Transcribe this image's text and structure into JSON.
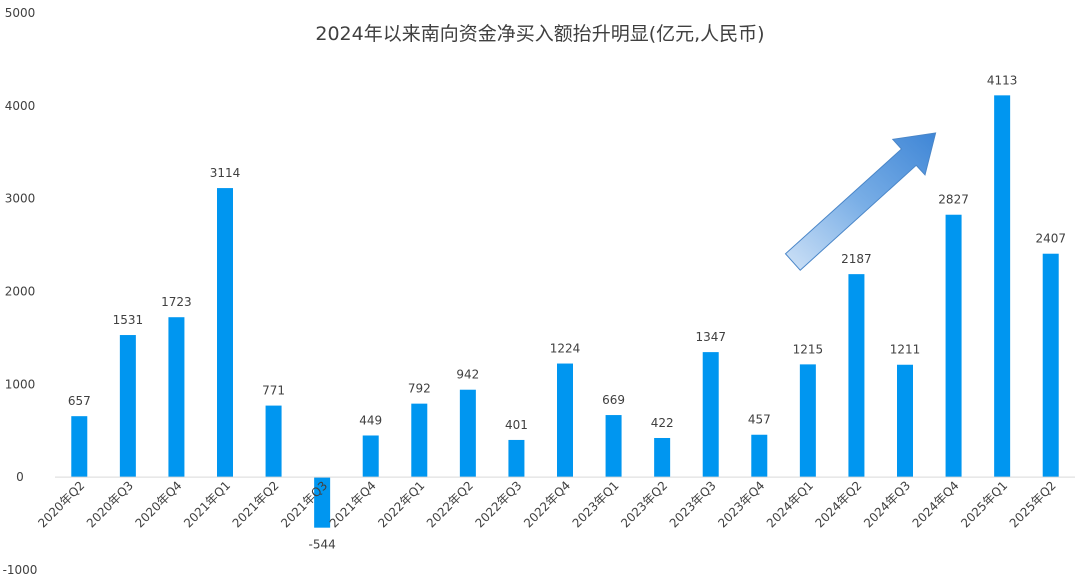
{
  "chart_data": {
    "type": "bar",
    "title": "2024年以来南向资金净买入额抬升明显(亿元,人民币)",
    "xlabel": "",
    "ylabel": "",
    "ylim": [
      -1000,
      5000
    ],
    "yticks": [
      -1000,
      0,
      1000,
      2000,
      3000,
      4000,
      5000
    ],
    "grid": false,
    "legend": "none",
    "categories": [
      "2020年Q2",
      "2020年Q3",
      "2020年Q4",
      "2021年Q1",
      "2021年Q2",
      "2021年Q3",
      "2021年Q4",
      "2022年Q1",
      "2022年Q2",
      "2022年Q3",
      "2022年Q4",
      "2023年Q1",
      "2023年Q2",
      "2023年Q3",
      "2023年Q4",
      "2024年Q1",
      "2024年Q2",
      "2024年Q3",
      "2024年Q4",
      "2025年Q1",
      "2025年Q2"
    ],
    "values": [
      657,
      1531,
      1723,
      3114,
      771,
      -544,
      449,
      792,
      942,
      401,
      1224,
      669,
      422,
      1347,
      457,
      1215,
      2187,
      1211,
      2827,
      4113,
      2407
    ],
    "colors": {
      "bar": "#0096f0",
      "arrow_fill": "#4a90e2",
      "text": "#404040"
    },
    "annotation": {
      "shape": "upward-trend-arrow",
      "from_category": "2024年Q1",
      "to_category": "2024年Q4"
    }
  }
}
